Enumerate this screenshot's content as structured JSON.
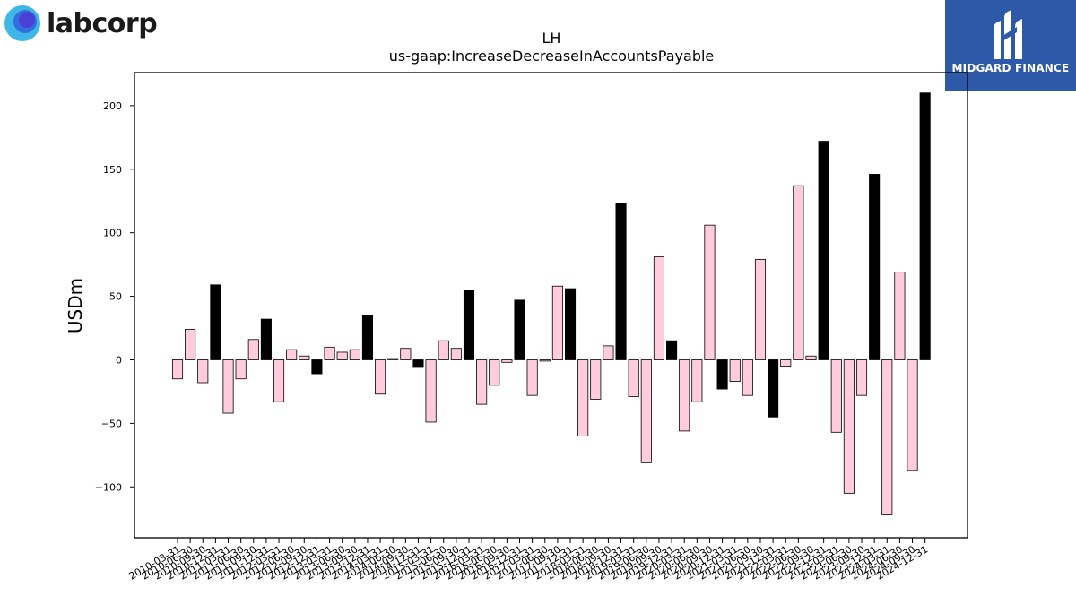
{
  "logos": {
    "left_text": "labcorp",
    "right_text": "MIDGARD FINANCE"
  },
  "chart_data": {
    "type": "bar",
    "title": "LH",
    "subtitle": "us-gaap:IncreaseDecreaseInAccountsPayable",
    "xlabel": "",
    "ylabel": "USDm",
    "ylim": [
      -140,
      226
    ],
    "yticks": [
      -100,
      -50,
      0,
      50,
      100,
      150,
      200
    ],
    "ytick_labels": [
      "−100",
      "−50",
      "0",
      "50",
      "100",
      "150",
      "200"
    ],
    "grid": false,
    "colors": {
      "quarter": "#ffccdd",
      "annual": "#000000",
      "edge": "#000000"
    },
    "categories": [
      "2010-03-31",
      "2010-06-30",
      "2010-09-30",
      "2010-12-31",
      "2011-03-31",
      "2011-06-30",
      "2011-09-30",
      "2011-12-31",
      "2012-03-31",
      "2012-06-30",
      "2012-09-30",
      "2012-12-31",
      "2013-03-31",
      "2013-06-30",
      "2013-09-30",
      "2013-12-31",
      "2014-03-31",
      "2014-06-30",
      "2014-09-30",
      "2014-12-31",
      "2015-03-31",
      "2015-06-30",
      "2015-09-30",
      "2015-12-31",
      "2016-03-31",
      "2016-06-30",
      "2016-09-30",
      "2016-12-31",
      "2017-03-31",
      "2017-06-30",
      "2017-09-30",
      "2017-12-31",
      "2018-03-31",
      "2018-06-30",
      "2018-09-30",
      "2018-12-31",
      "2019-03-31",
      "2019-06-30",
      "2019-09-30",
      "2019-12-31",
      "2020-03-31",
      "2020-06-30",
      "2020-09-30",
      "2020-12-31",
      "2021-03-31",
      "2021-06-30",
      "2021-09-30",
      "2021-12-31",
      "2022-03-31",
      "2022-06-30",
      "2022-09-30",
      "2022-12-31",
      "2023-03-31",
      "2023-06-30",
      "2023-09-30",
      "2023-12-31",
      "2024-03-31",
      "2024-06-30",
      "2024-09-30",
      "2024-12-31"
    ],
    "values": [
      -15,
      24,
      -18,
      59,
      -42,
      -15,
      16,
      32,
      -33,
      8,
      3,
      -11,
      10,
      6,
      8,
      35,
      -27,
      1,
      9,
      -6,
      -49,
      15,
      9,
      55,
      -35,
      -20,
      -2,
      47,
      -28,
      -1,
      58,
      56,
      -60,
      -31,
      11,
      123,
      -29,
      -81,
      81,
      15,
      -56,
      -33,
      106,
      -23,
      -17,
      -28,
      79,
      -45,
      -5,
      137,
      3,
      172,
      -57,
      -105,
      -28,
      146,
      -122,
      69,
      -87,
      210
    ],
    "annual_flags": [
      0,
      0,
      0,
      1,
      0,
      0,
      0,
      1,
      0,
      0,
      0,
      1,
      0,
      0,
      0,
      1,
      0,
      0,
      0,
      1,
      0,
      0,
      0,
      1,
      0,
      0,
      0,
      1,
      0,
      0,
      0,
      1,
      0,
      0,
      0,
      1,
      0,
      0,
      0,
      1,
      0,
      0,
      0,
      1,
      0,
      0,
      0,
      1,
      0,
      0,
      0,
      1,
      0,
      0,
      0,
      1,
      0,
      0,
      0,
      1
    ]
  }
}
